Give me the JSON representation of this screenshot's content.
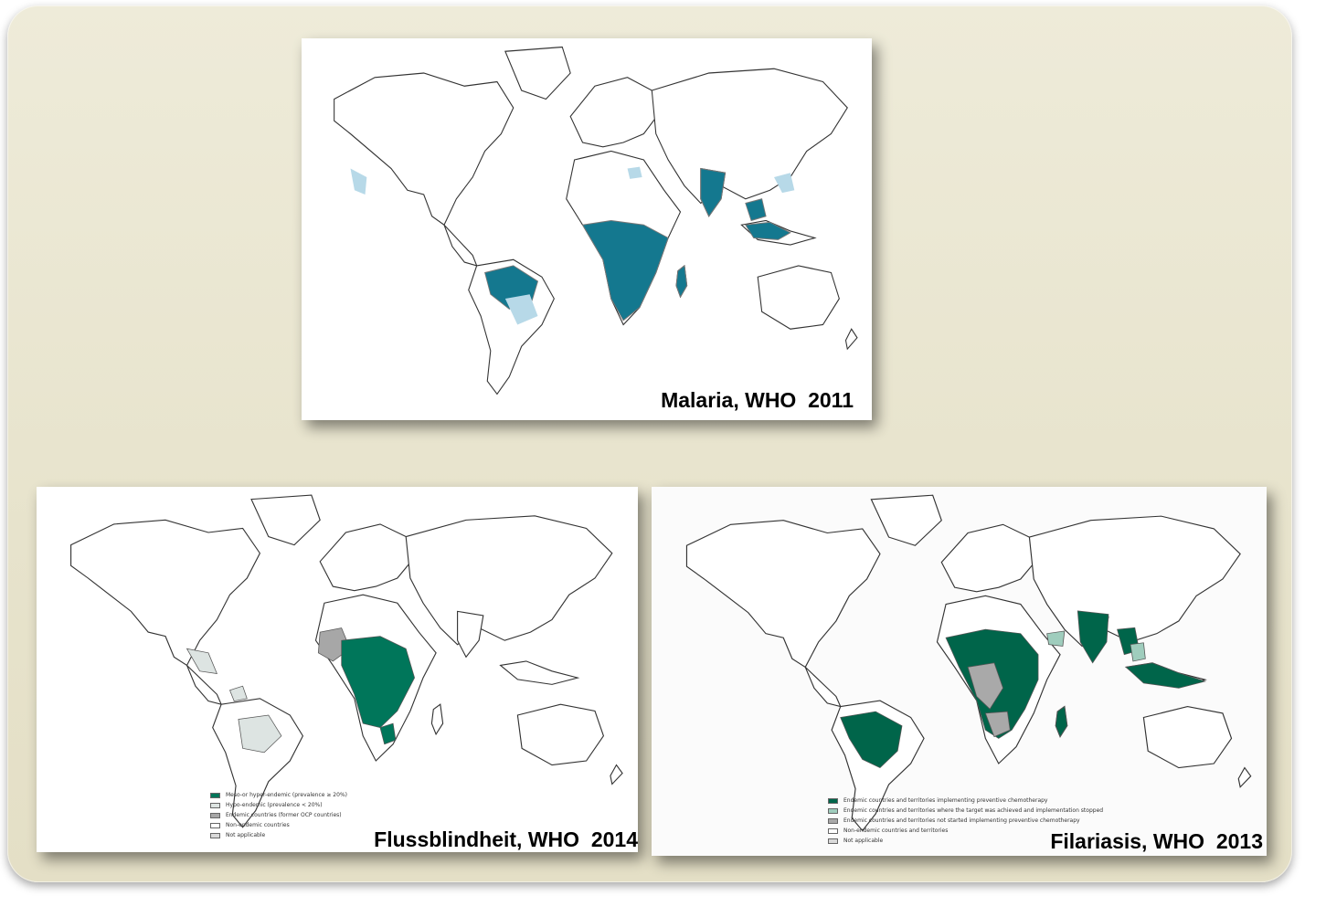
{
  "colors": {
    "panel_background": "#e8e4cd",
    "malaria_high": "#14788f",
    "malaria_low": "#b7d9e8",
    "onchocerciasis_meso_hyper": "#00765a",
    "onchocerciasis_hypo": "#dde4e2",
    "onchocerciasis_former_ocp": "#a7a7a7",
    "filariasis_implementing": "#00654a",
    "filariasis_stopped": "#9fcdbd",
    "filariasis_not_started": "#a9a9a9",
    "outline": "#333333"
  },
  "maps": {
    "malaria": {
      "caption": "Malaria, WHO  2011"
    },
    "flussblindheit": {
      "caption": "Flussblindheit, WHO  2014",
      "legend": [
        {
          "label": "Meso-or hyper-endemic (prevalence ≥ 20%)",
          "color": "#00765a"
        },
        {
          "label": "Hypo-endemic (prevalence < 20%)",
          "color": "#dde4e2"
        },
        {
          "label": "Endemic countries (former OCP countries)",
          "color": "#a7a7a7"
        },
        {
          "label": "Non-endemic countries",
          "color": "#ffffff"
        },
        {
          "label": "Not applicable",
          "color": "#d9d9d9"
        }
      ]
    },
    "filariasis": {
      "caption": "Filariasis, WHO  2013",
      "legend": [
        {
          "label": "Endemic countries and territories implementing preventive chemotherapy",
          "color": "#00654a"
        },
        {
          "label": "Endemic countries and territories where the target was achieved and implementation stopped",
          "color": "#9fcdbd"
        },
        {
          "label": "Endemic countries and territories not started implementing preventive chemotherapy",
          "color": "#a9a9a9"
        },
        {
          "label": "Non-endemic countries and territories",
          "color": "#ffffff"
        },
        {
          "label": "Not applicable",
          "color": "#d9d9d9"
        }
      ]
    }
  }
}
